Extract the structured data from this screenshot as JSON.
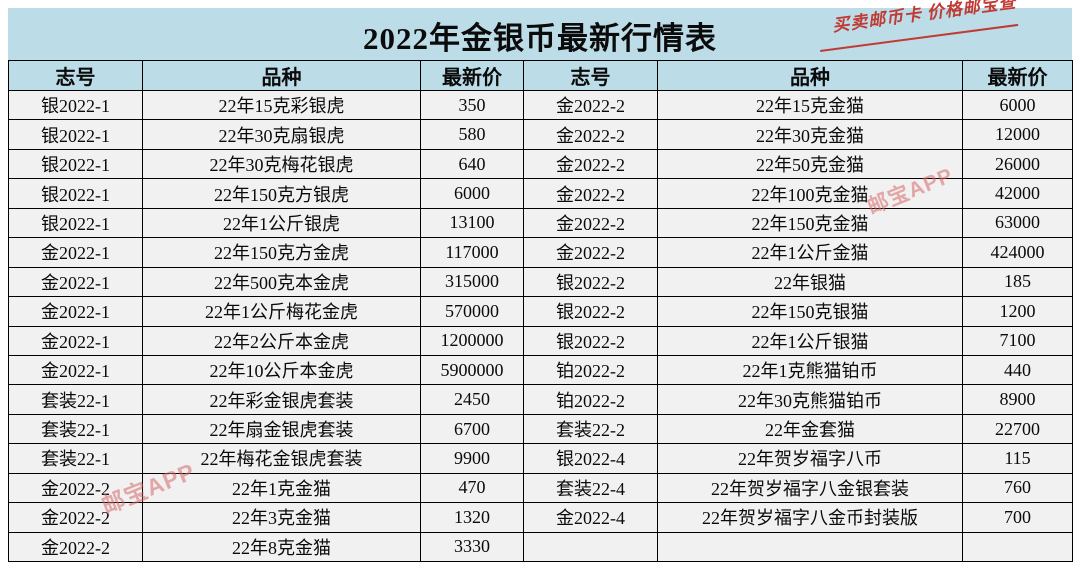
{
  "title": "2022年金银币最新行情表",
  "promo_note": "买卖邮币卡 价格邮宝查",
  "watermark_text": "邮宝APP",
  "colors": {
    "band_blue": "#bcdce8",
    "row_gray": "#f1f1f1",
    "border_black": "#000000",
    "note_red": "#c13b35",
    "watermark_pink": "#d66a6a"
  },
  "table": {
    "columns": [
      "志号",
      "品种",
      "最新价"
    ],
    "left_rows": [
      [
        "银2022-1",
        "22年15克彩银虎",
        "350"
      ],
      [
        "银2022-1",
        "22年30克扇银虎",
        "580"
      ],
      [
        "银2022-1",
        "22年30克梅花银虎",
        "640"
      ],
      [
        "银2022-1",
        "22年150克方银虎",
        "6000"
      ],
      [
        "银2022-1",
        "22年1公斤银虎",
        "13100"
      ],
      [
        "金2022-1",
        "22年150克方金虎",
        "117000"
      ],
      [
        "金2022-1",
        "22年500克本金虎",
        "315000"
      ],
      [
        "金2022-1",
        "22年1公斤梅花金虎",
        "570000"
      ],
      [
        "金2022-1",
        "22年2公斤本金虎",
        "1200000"
      ],
      [
        "金2022-1",
        "22年10公斤本金虎",
        "5900000"
      ],
      [
        "套装22-1",
        "22年彩金银虎套装",
        "2450"
      ],
      [
        "套装22-1",
        "22年扇金银虎套装",
        "6700"
      ],
      [
        "套装22-1",
        "22年梅花金银虎套装",
        "9900"
      ],
      [
        "金2022-2",
        "22年1克金猫",
        "470"
      ],
      [
        "金2022-2",
        "22年3克金猫",
        "1320"
      ],
      [
        "金2022-2",
        "22年8克金猫",
        "3330"
      ]
    ],
    "right_rows": [
      [
        "金2022-2",
        "22年15克金猫",
        "6000"
      ],
      [
        "金2022-2",
        "22年30克金猫",
        "12000"
      ],
      [
        "金2022-2",
        "22年50克金猫",
        "26000"
      ],
      [
        "金2022-2",
        "22年100克金猫",
        "42000"
      ],
      [
        "金2022-2",
        "22年150克金猫",
        "63000"
      ],
      [
        "金2022-2",
        "22年1公斤金猫",
        "424000"
      ],
      [
        "银2022-2",
        "22年银猫",
        "185"
      ],
      [
        "银2022-2",
        "22年150克银猫",
        "1200"
      ],
      [
        "银2022-2",
        "22年1公斤银猫",
        "7100"
      ],
      [
        "铂2022-2",
        "22年1克熊猫铂币",
        "440"
      ],
      [
        "铂2022-2",
        "22年30克熊猫铂币",
        "8900"
      ],
      [
        "套装22-2",
        "22年金套猫",
        "22700"
      ],
      [
        "银2022-4",
        "22年贺岁福字八币",
        "115"
      ],
      [
        "套装22-4",
        "22年贺岁福字八金银套装",
        "760"
      ],
      [
        "金2022-4",
        "22年贺岁福字八金币封装版",
        "700"
      ],
      [
        "",
        "",
        ""
      ]
    ]
  }
}
